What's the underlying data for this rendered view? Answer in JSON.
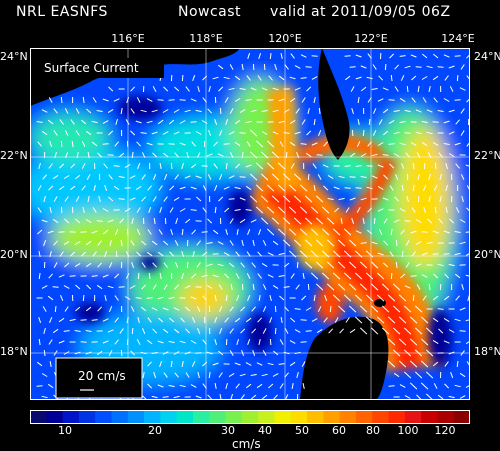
{
  "header": {
    "producer": "NRL EASNFS",
    "product": "Nowcast",
    "valid": "valid at 2011/09/05 06Z"
  },
  "map": {
    "title": "Surface Current",
    "lon_labels": [
      "116°E",
      "118°E",
      "120°E",
      "122°E",
      "124°E"
    ],
    "lat_labels_left": [
      "24°N",
      "22°N",
      "20°N",
      "18°N"
    ],
    "lat_labels_right": [
      "24°N",
      "22°N",
      "20°N",
      "18°N"
    ],
    "reference_vector": "20 cm/s",
    "land_color": "#000000",
    "arrow_color": "#ffffff"
  },
  "colorbar": {
    "tick_labels": [
      "10",
      "20",
      "30",
      "40",
      "50",
      "60",
      "80",
      "100",
      "120"
    ],
    "units": "cm/s",
    "colors": [
      "#0a0a6e",
      "#000096",
      "#0014c8",
      "#0032e6",
      "#0050ff",
      "#0070ff",
      "#0090ff",
      "#00b4ff",
      "#00d2f0",
      "#00e6c8",
      "#28f0a0",
      "#50f078",
      "#78f050",
      "#a0f032",
      "#c8f01e",
      "#f0f000",
      "#ffdc00",
      "#ffbe00",
      "#ffa000",
      "#ff8200",
      "#ff6400",
      "#ff4600",
      "#ff2800",
      "#e61414",
      "#c80000",
      "#aa0000",
      "#8c0000"
    ]
  }
}
